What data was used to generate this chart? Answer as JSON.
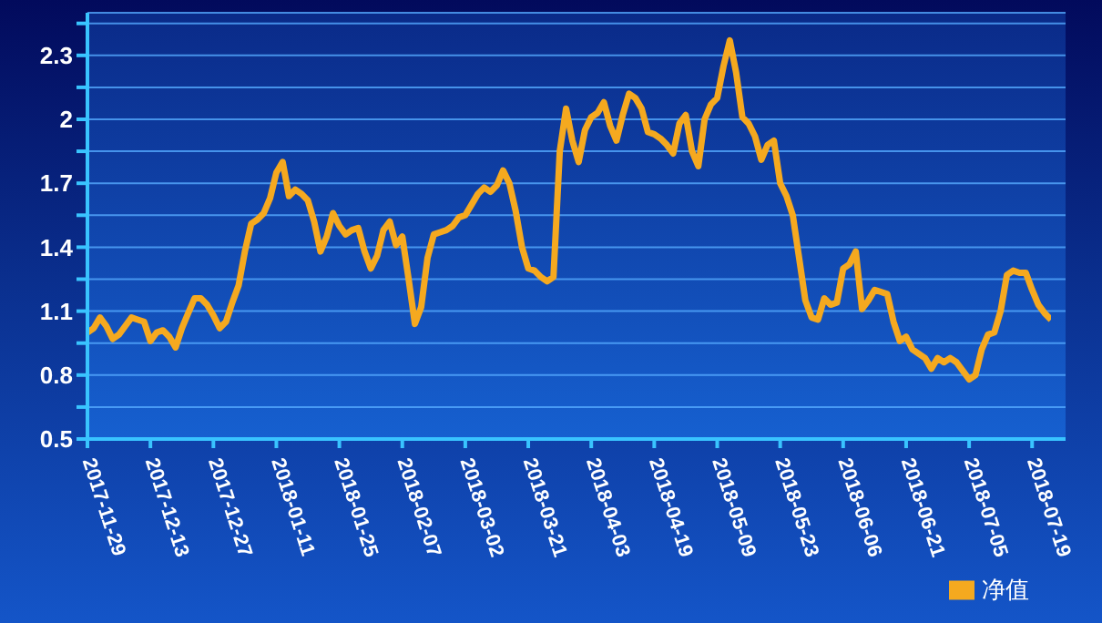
{
  "chart_data": {
    "type": "line",
    "categories": [
      "2017-11-29",
      null,
      null,
      null,
      null,
      null,
      null,
      null,
      null,
      null,
      "2017-12-13",
      null,
      null,
      null,
      null,
      null,
      null,
      null,
      null,
      null,
      "2017-12-27",
      null,
      null,
      null,
      null,
      null,
      null,
      null,
      null,
      null,
      "2018-01-11",
      null,
      null,
      null,
      null,
      null,
      null,
      null,
      null,
      null,
      "2018-01-25",
      null,
      null,
      null,
      null,
      null,
      null,
      null,
      null,
      null,
      "2018-02-07",
      null,
      null,
      null,
      null,
      null,
      null,
      null,
      null,
      null,
      "2018-03-02",
      null,
      null,
      null,
      null,
      null,
      null,
      null,
      null,
      null,
      "2018-03-21",
      null,
      null,
      null,
      null,
      null,
      null,
      null,
      null,
      null,
      "2018-04-03",
      null,
      null,
      null,
      null,
      null,
      null,
      null,
      null,
      null,
      "2018-04-19",
      null,
      null,
      null,
      null,
      null,
      null,
      null,
      null,
      null,
      "2018-05-09",
      null,
      null,
      null,
      null,
      null,
      null,
      null,
      null,
      null,
      "2018-05-23",
      null,
      null,
      null,
      null,
      null,
      null,
      null,
      null,
      null,
      "2018-06-06",
      null,
      null,
      null,
      null,
      null,
      null,
      null,
      null,
      null,
      "2018-06-21",
      null,
      null,
      null,
      null,
      null,
      null,
      null,
      null,
      null,
      "2018-07-05",
      null,
      null,
      null,
      null,
      null,
      null,
      null,
      null,
      null,
      "2018-07-19",
      null,
      null,
      null
    ],
    "series": [
      {
        "name": "净值",
        "color": "#f5a91f",
        "values": [
          1.0,
          1.02,
          1.07,
          1.03,
          0.97,
          0.99,
          1.03,
          1.07,
          1.06,
          1.05,
          0.96,
          1.0,
          1.01,
          0.98,
          0.93,
          1.02,
          1.09,
          1.16,
          1.16,
          1.13,
          1.08,
          1.02,
          1.05,
          1.14,
          1.22,
          1.38,
          1.51,
          1.53,
          1.56,
          1.63,
          1.75,
          1.8,
          1.64,
          1.67,
          1.65,
          1.62,
          1.52,
          1.38,
          1.45,
          1.56,
          1.5,
          1.46,
          1.48,
          1.49,
          1.38,
          1.3,
          1.36,
          1.48,
          1.52,
          1.41,
          1.45,
          1.25,
          1.04,
          1.12,
          1.35,
          1.46,
          1.47,
          1.48,
          1.5,
          1.54,
          1.55,
          1.6,
          1.65,
          1.68,
          1.66,
          1.69,
          1.76,
          1.7,
          1.57,
          1.4,
          1.3,
          1.29,
          1.26,
          1.24,
          1.26,
          1.85,
          2.05,
          1.9,
          1.8,
          1.95,
          2.01,
          2.03,
          2.08,
          1.97,
          1.9,
          2.02,
          2.12,
          2.1,
          2.05,
          1.94,
          1.93,
          1.91,
          1.88,
          1.84,
          1.98,
          2.02,
          1.85,
          1.78,
          2.0,
          2.07,
          2.1,
          2.25,
          2.37,
          2.22,
          2.01,
          1.98,
          1.92,
          1.81,
          1.88,
          1.9,
          1.7,
          1.64,
          1.55,
          1.35,
          1.15,
          1.07,
          1.06,
          1.16,
          1.13,
          1.14,
          1.3,
          1.32,
          1.38,
          1.11,
          1.15,
          1.2,
          1.19,
          1.18,
          1.05,
          0.96,
          0.98,
          0.92,
          0.9,
          0.88,
          0.83,
          0.88,
          0.86,
          0.88,
          0.86,
          0.82,
          0.78,
          0.8,
          0.92,
          0.99,
          1.0,
          1.1,
          1.27,
          1.29,
          1.28,
          1.28,
          1.2,
          1.13,
          1.09,
          1.06
        ]
      }
    ],
    "ylim": [
      0.5,
      2.5
    ],
    "yticks": [
      0.5,
      {
        "value": 0.65,
        "label": null
      },
      0.8,
      {
        "value": 0.95,
        "label": null
      },
      1.1,
      {
        "value": 1.25,
        "label": null
      },
      1.4,
      {
        "value": 1.55,
        "label": null
      },
      1.7,
      {
        "value": 1.85,
        "label": null
      },
      2,
      {
        "value": 2.15,
        "label": null
      },
      2.3,
      {
        "value": 2.45,
        "label": null
      }
    ],
    "grid": "y",
    "legend": "bottom right",
    "marker": "none",
    "line_style": "solid"
  }
}
